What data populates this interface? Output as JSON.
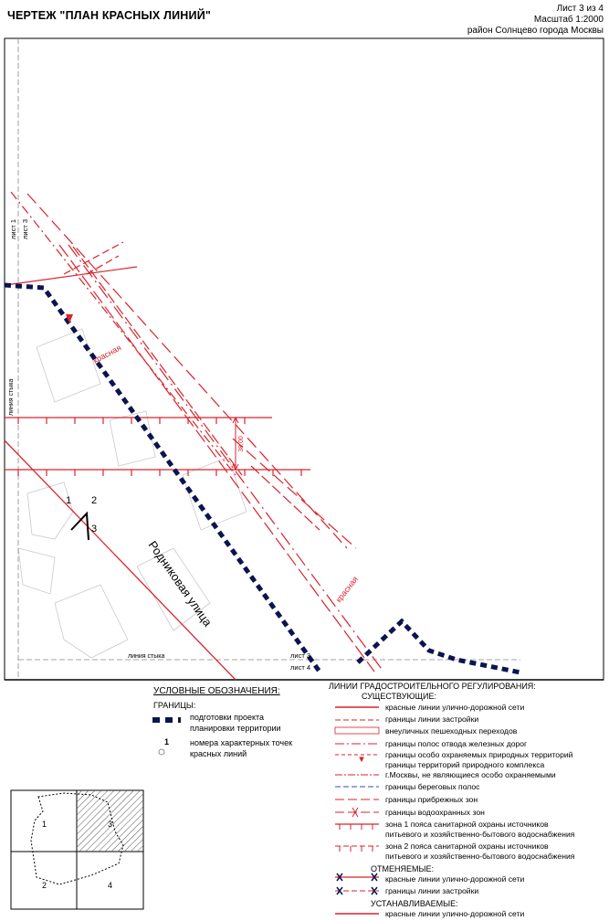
{
  "header": {
    "title": "ЧЕРТЕЖ \"ПЛАН КРАСНЫХ ЛИНИЙ\"",
    "sheet": "Лист 3 из 4",
    "scale": "Масштаб 1:2000",
    "district": "район Солнцево города Москвы"
  },
  "map": {
    "sheet_label_1": "лист 1",
    "sheet_label_3": "лист 3",
    "sheet_label_3b": "лист 3",
    "sheet_label_4": "лист 4",
    "junction_label_left": "линия стыка",
    "junction_label_bottom": "линия стыка",
    "street_name": "Родниковая улица",
    "red_label_1": "красная",
    "red_label_2": "красная",
    "dimension": "38,00",
    "point_1": "1",
    "point_2": "2",
    "point_3": "3",
    "colors": {
      "red": "#d9232d",
      "navy": "#0b1450",
      "grey": "#9a9a9a"
    }
  },
  "legend": {
    "title": "УСЛОВНЫЕ ОБОЗНАЧЕНИЯ:",
    "borders_heading": "ГРАНИЦЫ:",
    "boundary_line1": "подготовки проекта",
    "boundary_line2": "планировки территории",
    "points_line1": "номера характерных точек",
    "points_line2": "красных линий",
    "point_symbol": "1"
  },
  "regulation": {
    "title": "ЛИНИИ ГРАДОСТРОИТЕЛЬНОГО РЕГУЛИРОВАНИЯ:",
    "existing": "СУЩЕСТВУЮЩИЕ:",
    "existing_items": [
      "красные линии улично-дорожной сети",
      "границы линии застройки",
      "внеуличных пешеходных переходов",
      "границы полос отвода железных дорог",
      "границы особо охраняемых природных территорий",
      "границы территорий природного комплекса",
      "г.Москвы, не являющиеся особо охраняемыми",
      "границы береговых полос",
      "границы прибрежных зон",
      "границы водоохранных зон",
      "зона 1 пояса санитарной охраны источников",
      "питьевого и хозяйственно-бытового водоснабжения",
      "зона 2 пояса санитарной охраны источников",
      "питьевого и хозяйственно-бытового водоснабжения"
    ],
    "cancelled": "ОТМЕНЯЕМЫЕ:",
    "cancelled_items": [
      "красные линии улично-дорожной сети",
      "границы линии застройки"
    ],
    "established": "УСТАНАВЛИВАЕМЫЕ:",
    "established_items": [
      "красные линии улично-дорожной сети"
    ]
  },
  "index_map": {
    "cells": [
      "1",
      "2",
      "3",
      "4"
    ]
  }
}
